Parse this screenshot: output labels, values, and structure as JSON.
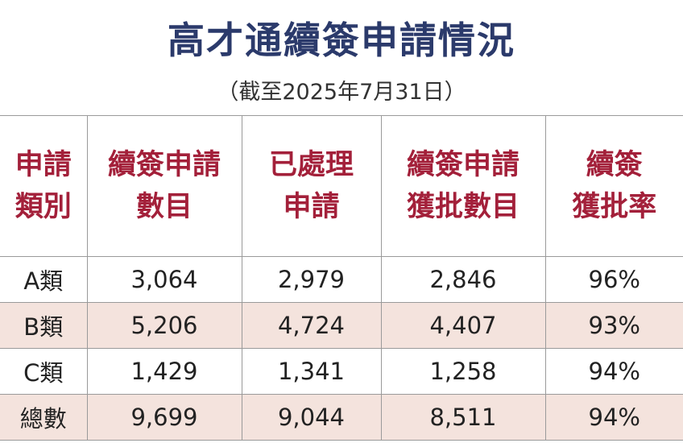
{
  "header": {
    "title": "高才通續簽申請情況",
    "subtitle": "（截至2025年7月31日）"
  },
  "table": {
    "columns": [
      [
        "申請",
        "類別"
      ],
      [
        "續簽申請",
        "數目"
      ],
      [
        "已處理",
        "申請"
      ],
      [
        "續簽申請",
        "獲批數目"
      ],
      [
        "續簽",
        "獲批率"
      ]
    ],
    "rows": [
      [
        "A類",
        "3,064",
        "2,979",
        "2,846",
        "96%"
      ],
      [
        "B類",
        "5,206",
        "4,724",
        "4,407",
        "93%"
      ],
      [
        "C類",
        "1,429",
        "1,341",
        "1,258",
        "94%"
      ],
      [
        "總數",
        "9,699",
        "9,044",
        "8,511",
        "94%"
      ]
    ]
  }
}
